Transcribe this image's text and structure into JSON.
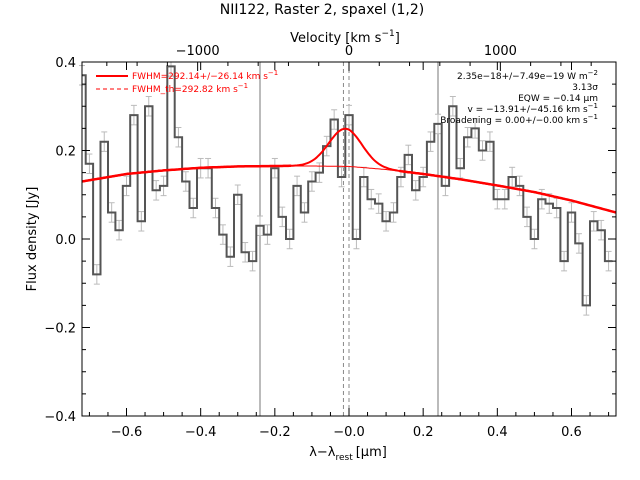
{
  "chart_data": {
    "type": "line",
    "title": "NII122, Raster 2, spaxel (1,2)",
    "xlabel": "λ−λ",
    "xlabel_sub": "rest",
    "xlabel_unit": "[μm]",
    "ylabel": "Flux density [Jy]",
    "top_axis_label": "Velocity [km s",
    "top_axis_label_sup": "−1",
    "top_axis_label_end": "]",
    "xlim": [
      -0.72,
      0.72
    ],
    "ylim": [
      -0.4,
      0.4
    ],
    "x_ticks": [
      -0.6,
      -0.4,
      -0.2,
      0.0,
      0.2,
      0.4,
      0.6
    ],
    "x_tick_labels": [
      "−0.6",
      "−0.4",
      "−0.2",
      "−0.0",
      "0.2",
      "0.4",
      "0.6"
    ],
    "y_ticks": [
      -0.4,
      -0.2,
      0.0,
      0.2,
      0.4
    ],
    "y_tick_labels": [
      "−0.4",
      "−0.2",
      "0.0",
      "0.2",
      "0.4"
    ],
    "top_ticks_velocity": [
      -1000,
      0,
      1000
    ],
    "top_tick_labels": [
      "−1000",
      "0",
      "1000"
    ],
    "velocity_per_micron": 2450,
    "vertical_lines_solid": [
      -0.24,
      0.24
    ],
    "vertical_lines_dashed": [
      -0.015,
      0.0
    ],
    "spectrum": {
      "x": [
        -0.72,
        -0.7,
        -0.68,
        -0.66,
        -0.64,
        -0.62,
        -0.6,
        -0.58,
        -0.56,
        -0.54,
        -0.52,
        -0.5,
        -0.48,
        -0.46,
        -0.44,
        -0.42,
        -0.4,
        -0.38,
        -0.36,
        -0.34,
        -0.32,
        -0.3,
        -0.28,
        -0.26,
        -0.24,
        -0.22,
        -0.2,
        -0.18,
        -0.16,
        -0.14,
        -0.12,
        -0.1,
        -0.08,
        -0.06,
        -0.04,
        -0.02,
        0.0,
        0.02,
        0.04,
        0.06,
        0.08,
        0.1,
        0.12,
        0.14,
        0.16,
        0.18,
        0.2,
        0.22,
        0.24,
        0.26,
        0.28,
        0.3,
        0.32,
        0.34,
        0.36,
        0.38,
        0.4,
        0.42,
        0.44,
        0.46,
        0.48,
        0.5,
        0.52,
        0.54,
        0.56,
        0.58,
        0.6,
        0.62,
        0.64,
        0.66,
        0.68,
        0.7
      ],
      "y": [
        0.37,
        0.17,
        -0.08,
        0.22,
        0.06,
        0.02,
        0.12,
        0.28,
        0.04,
        0.3,
        0.11,
        0.12,
        0.39,
        0.23,
        0.13,
        0.07,
        0.16,
        0.16,
        0.07,
        0.01,
        -0.04,
        0.1,
        -0.03,
        -0.05,
        0.03,
        0.01,
        0.16,
        0.05,
        0.0,
        0.12,
        0.06,
        0.13,
        0.15,
        0.21,
        0.27,
        0.14,
        0.28,
        0.0,
        0.14,
        0.09,
        0.08,
        0.04,
        0.06,
        0.14,
        0.19,
        0.11,
        0.14,
        0.22,
        0.26,
        0.12,
        0.3,
        0.16,
        0.23,
        0.25,
        0.2,
        0.22,
        0.09,
        0.09,
        0.14,
        0.12,
        0.05,
        0.0,
        0.09,
        0.08,
        0.07,
        -0.05,
        0.06,
        -0.01,
        -0.15,
        0.04,
        0.02,
        -0.05
      ],
      "error": 0.022,
      "color": "#555555"
    },
    "continuum": {
      "x": [
        -0.72,
        -0.6,
        -0.5,
        -0.4,
        -0.3,
        -0.2,
        -0.1,
        0.0,
        0.1,
        0.2,
        0.3,
        0.4,
        0.5,
        0.6,
        0.72
      ],
      "y": [
        0.13,
        0.147,
        0.155,
        0.161,
        0.164,
        0.165,
        0.165,
        0.164,
        0.157,
        0.147,
        0.135,
        0.121,
        0.106,
        0.087,
        0.06
      ],
      "color": "#ff0000"
    },
    "gaussian": {
      "center": -0.01,
      "amplitude": 0.085,
      "sigma": 0.045,
      "color": "#ff0000"
    },
    "legend": [
      {
        "label": "FWHM=292.14+/−26.14 km s",
        "sup": "−1",
        "style": "solid",
        "color": "#ff0000"
      },
      {
        "label": "FWHM_th=292.82 km s",
        "sup": "−1",
        "style": "dashed",
        "color": "#ff0000"
      }
    ],
    "annotations": [
      {
        "text": "2.35e−18+/−7.49e−19 W m",
        "sup": "−2"
      },
      {
        "text": "3.13σ",
        "sup": ""
      },
      {
        "text": "EQW = −0.14 μm",
        "sup": ""
      },
      {
        "text": "v = −13.91+/−45.16 km s",
        "sup": "−1"
      },
      {
        "text": "Broadening = 0.00+/−0.00 km s",
        "sup": "−1"
      }
    ]
  }
}
